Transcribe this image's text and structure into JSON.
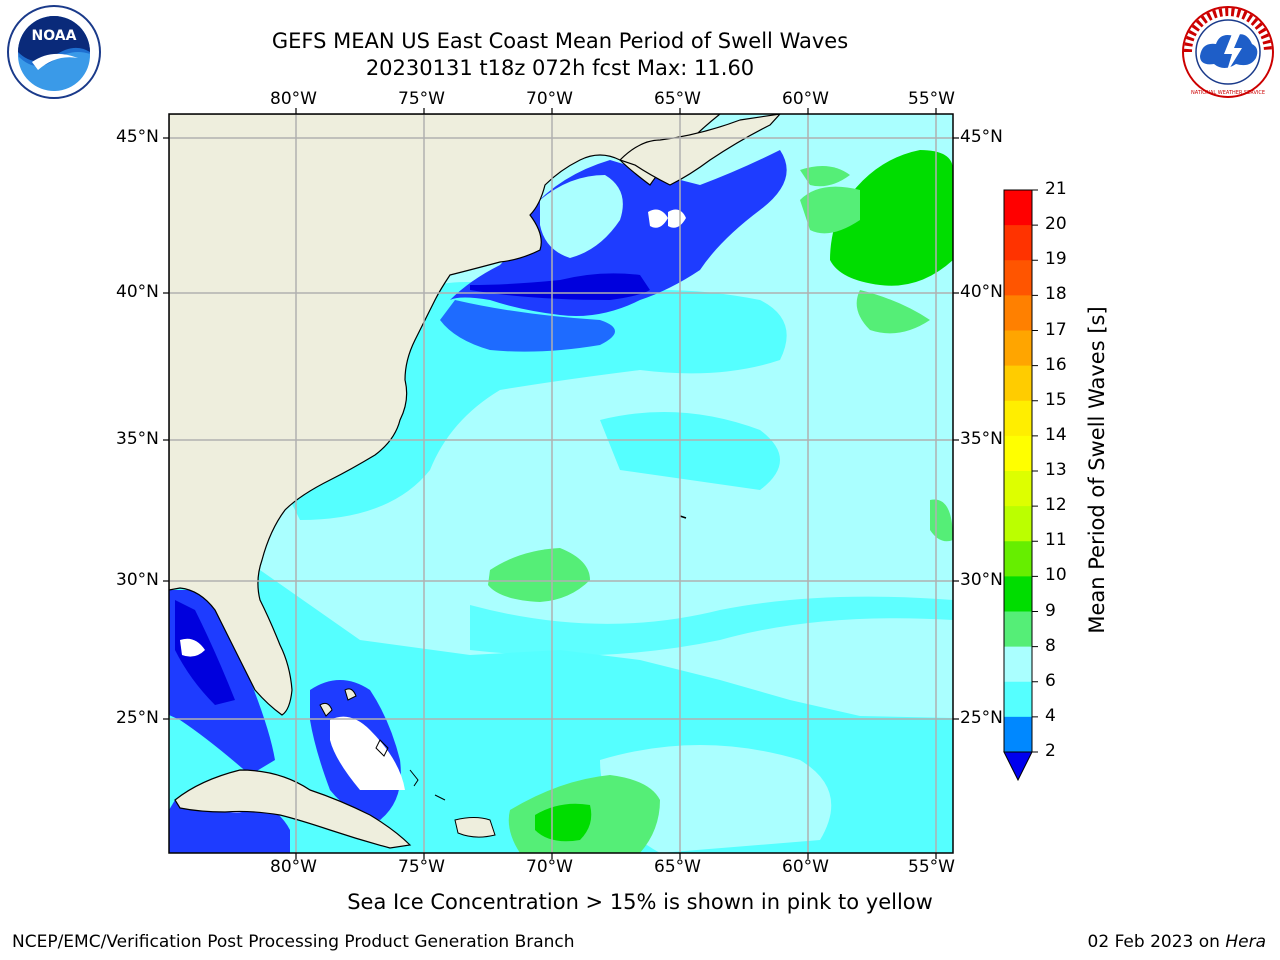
{
  "header": {
    "title_line1": "GEFS MEAN US East Coast Mean Period of Swell Waves",
    "title_line2": "20230131 t18z 072h fcst   Max: 11.60"
  },
  "logos": {
    "left": "NOAA",
    "right": "NATIONAL WEATHER SERVICE"
  },
  "map": {
    "lon_ticks_top": [
      "80°W",
      "75°W",
      "70°W",
      "65°W",
      "60°W",
      "55°W"
    ],
    "lon_ticks_bottom": [
      "80°W",
      "75°W",
      "70°W",
      "65°W",
      "60°W",
      "55°W"
    ],
    "lat_ticks_left": [
      "45°N",
      "40°N",
      "35°N",
      "30°N",
      "25°N"
    ],
    "lat_ticks_right": [
      "45°N",
      "40°N",
      "35°N",
      "30°N",
      "25°N"
    ],
    "land_color": "#eeeedd",
    "grid_color": "#b0b0b0"
  },
  "colorbar": {
    "title": "Mean Period of Swell Waves [s]",
    "labels": [
      "21",
      "20",
      "19",
      "18",
      "17",
      "16",
      "15",
      "14",
      "13",
      "12",
      "11",
      "10",
      "9",
      "8",
      "6",
      "4",
      "2"
    ],
    "colors": [
      "#ff0000",
      "#ff3300",
      "#ff5500",
      "#ff8000",
      "#ffa500",
      "#ffcc00",
      "#ffee00",
      "#ffff00",
      "#ddff00",
      "#bbff00",
      "#66ee00",
      "#00dd00",
      "#55ee77",
      "#aaffff",
      "#55ffff",
      "#00eeff",
      "#0088ff"
    ],
    "under_color": "#0000ee"
  },
  "caption": "Sea Ice Concentration > 15% is shown in pink to yellow",
  "footer": {
    "left": "NCEP/EMC/Verification Post Processing Product Generation Branch",
    "right_date": "02 Feb 2023 on ",
    "right_host": "Hera"
  }
}
